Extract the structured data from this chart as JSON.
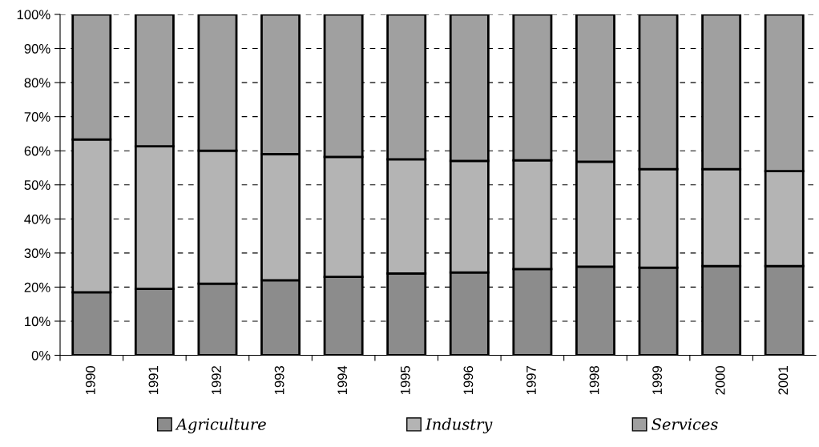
{
  "chart_data": {
    "type": "bar",
    "stacked": true,
    "categories": [
      "1990",
      "1991",
      "1992",
      "1993",
      "1994",
      "1995",
      "1996",
      "1997",
      "1998",
      "1999",
      "2000",
      "2001"
    ],
    "series": [
      {
        "name": "Agriculture",
        "color": "#8c8c8c",
        "values": [
          18.5,
          19.5,
          21,
          22,
          23,
          24,
          24.3,
          25.3,
          26,
          25.7,
          26.2,
          26.2
        ]
      },
      {
        "name": "Industry",
        "color": "#b4b4b4",
        "values": [
          44.8,
          41.8,
          39,
          37,
          35.2,
          33.5,
          32.7,
          31.9,
          30.8,
          28.9,
          28.4,
          27.8
        ]
      },
      {
        "name": "Services",
        "color": "#a0a0a0",
        "values": [
          36.7,
          38.7,
          40,
          41,
          41.8,
          42.5,
          43,
          42.8,
          43.2,
          45.4,
          45.4,
          46
        ]
      }
    ],
    "ylim": [
      0,
      100
    ],
    "yticks": [
      {
        "value": 0,
        "label": "0%"
      },
      {
        "value": 10,
        "label": "10%"
      },
      {
        "value": 20,
        "label": "20%"
      },
      {
        "value": 30,
        "label": "30%"
      },
      {
        "value": 40,
        "label": "40%"
      },
      {
        "value": 50,
        "label": "50%"
      },
      {
        "value": 60,
        "label": "60%"
      },
      {
        "value": 70,
        "label": "70%"
      },
      {
        "value": 80,
        "label": "80%"
      },
      {
        "value": 90,
        "label": "90%"
      },
      {
        "value": 100,
        "label": "100%"
      }
    ],
    "grid": "y",
    "legend": "bottom"
  }
}
